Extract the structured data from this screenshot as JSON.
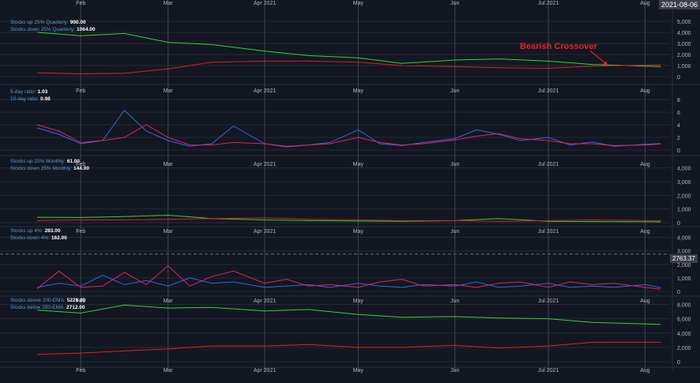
{
  "header": {
    "date_badge": "2021-08-06"
  },
  "price_badge": "2763.37",
  "annotation": {
    "text": "Bearish Crossover",
    "color": "#e8202a"
  },
  "x_axis": {
    "ticks": [
      "Feb",
      "Mar",
      "Apr 2021",
      "May",
      "Jun",
      "Jul 2021",
      "Aug"
    ]
  },
  "colors": {
    "green": "#2bd62b",
    "red": "#e51c23",
    "blue": "#2f6bd6",
    "pink": "#e91e63",
    "grid": "#262a33",
    "vline": "#3f434c"
  },
  "panes": [
    {
      "legend": [
        {
          "label": "Stocks up 25% Quarterly:",
          "value": "900.00"
        },
        {
          "label": "Stocks down 25% Quarterly:",
          "value": "1064.00"
        }
      ],
      "y_ticks": [
        "5,000",
        "4,000",
        "3,000",
        "2,000",
        "1,000",
        "0"
      ]
    },
    {
      "legend": [
        {
          "label": "5-day ratio:",
          "value": "1.03"
        },
        {
          "label": "10-day ratio:",
          "value": "0.98"
        }
      ],
      "y_ticks": [
        "8",
        "6",
        "4",
        "2",
        "0"
      ]
    },
    {
      "legend": [
        {
          "label": "Stocks up 25% Monthly:",
          "value": "61.00"
        },
        {
          "label": "Stocks down 25% Monthly:",
          "value": "144.00"
        }
      ],
      "y_ticks": [
        "4,000",
        "3,000",
        "2,000",
        "1,000",
        "0"
      ]
    },
    {
      "legend": [
        {
          "label": "Stocks up 4%:",
          "value": "283.00"
        },
        {
          "label": "Stocks down 4%:",
          "value": "162.00"
        }
      ],
      "y_ticks": [
        "4,000",
        "3,000",
        "2,000",
        "1,000",
        "0"
      ]
    },
    {
      "legend": [
        {
          "label": "Stocks above 200-EMA:",
          "value": "5226.00"
        },
        {
          "label": "Stocks below 200-EMA:",
          "value": "2712.00"
        }
      ],
      "y_ticks": [
        "8,000",
        "6,000",
        "4,000",
        "2,000",
        "0"
      ]
    }
  ],
  "chart_data": [
    {
      "type": "line",
      "x_range": [
        "2021-01-18",
        "2021-08-09"
      ],
      "x": [
        "2021-01-18",
        "2021-02-01",
        "2021-02-15",
        "2021-03-01",
        "2021-03-15",
        "2021-04-01",
        "2021-04-15",
        "2021-05-01",
        "2021-05-15",
        "2021-06-01",
        "2021-06-15",
        "2021-07-01",
        "2021-07-15",
        "2021-08-06"
      ],
      "ylim": [
        0,
        5500
      ],
      "y_ticks": [
        0,
        1000,
        2000,
        3000,
        4000,
        5000
      ],
      "series": [
        {
          "name": "Stocks up 25% Quarterly",
          "color": "#2bd62b",
          "values": [
            4000,
            3700,
            3900,
            3100,
            2900,
            2300,
            1900,
            1700,
            1200,
            1500,
            1600,
            1400,
            1100,
            900
          ]
        },
        {
          "name": "Stocks down 25% Quarterly",
          "color": "#e51c23",
          "values": [
            350,
            250,
            300,
            700,
            1300,
            1400,
            1400,
            1300,
            1000,
            900,
            800,
            750,
            950,
            1064
          ]
        }
      ]
    },
    {
      "type": "line",
      "x_range": [
        "2021-01-18",
        "2021-08-09"
      ],
      "x": [
        "2021-01-18",
        "2021-01-25",
        "2021-02-01",
        "2021-02-08",
        "2021-02-15",
        "2021-02-22",
        "2021-03-01",
        "2021-03-08",
        "2021-03-15",
        "2021-03-22",
        "2021-04-01",
        "2021-04-08",
        "2021-04-15",
        "2021-04-22",
        "2021-05-01",
        "2021-05-08",
        "2021-05-15",
        "2021-05-22",
        "2021-06-01",
        "2021-06-08",
        "2021-06-15",
        "2021-06-22",
        "2021-07-01",
        "2021-07-08",
        "2021-07-15",
        "2021-07-22",
        "2021-08-01",
        "2021-08-06"
      ],
      "ylim": [
        0,
        8.5
      ],
      "y_ticks": [
        0,
        2,
        4,
        6,
        8
      ],
      "series": [
        {
          "name": "5-day ratio",
          "color": "#2f6bd6",
          "values": [
            3.5,
            2.5,
            1.0,
            1.5,
            6.3,
            3.0,
            1.5,
            0.6,
            1.0,
            3.8,
            1.0,
            0.5,
            0.8,
            1.2,
            3.2,
            1.0,
            0.7,
            1.2,
            1.8,
            3.2,
            2.5,
            1.5,
            2.0,
            0.8,
            1.3,
            0.6,
            0.9,
            1.03
          ]
        },
        {
          "name": "10-day ratio",
          "color": "#e91e63",
          "values": [
            4.0,
            3.0,
            1.2,
            1.5,
            2.0,
            4.0,
            2.0,
            0.8,
            0.8,
            1.2,
            1.0,
            0.6,
            0.8,
            1.0,
            2.0,
            1.2,
            0.8,
            1.0,
            1.6,
            2.2,
            2.6,
            1.8,
            1.5,
            1.0,
            1.0,
            0.7,
            0.8,
            0.98
          ]
        }
      ]
    },
    {
      "type": "line",
      "x_range": [
        "2021-01-18",
        "2021-08-09"
      ],
      "x": [
        "2021-01-18",
        "2021-02-01",
        "2021-02-15",
        "2021-03-01",
        "2021-03-15",
        "2021-04-01",
        "2021-04-15",
        "2021-05-01",
        "2021-05-15",
        "2021-06-01",
        "2021-06-15",
        "2021-07-01",
        "2021-07-15",
        "2021-08-06"
      ],
      "ylim": [
        0,
        4500
      ],
      "y_ticks": [
        0,
        1000,
        2000,
        3000,
        4000
      ],
      "series": [
        {
          "name": "Stocks up 25% Monthly",
          "color": "#2bd62b",
          "values": [
            400,
            380,
            450,
            550,
            300,
            200,
            150,
            120,
            100,
            150,
            300,
            100,
            80,
            61
          ]
        },
        {
          "name": "Stocks down 25% Monthly",
          "color": "#e51c23",
          "values": [
            150,
            200,
            200,
            250,
            300,
            350,
            250,
            200,
            150,
            150,
            100,
            150,
            200,
            144
          ]
        }
      ]
    },
    {
      "type": "line",
      "x_range": [
        "2021-01-18",
        "2021-08-09"
      ],
      "x": [
        "2021-01-18",
        "2021-01-25",
        "2021-02-01",
        "2021-02-08",
        "2021-02-15",
        "2021-02-22",
        "2021-03-01",
        "2021-03-08",
        "2021-03-15",
        "2021-03-22",
        "2021-04-01",
        "2021-04-08",
        "2021-04-15",
        "2021-04-22",
        "2021-05-01",
        "2021-05-08",
        "2021-05-15",
        "2021-05-22",
        "2021-06-01",
        "2021-06-08",
        "2021-06-15",
        "2021-06-22",
        "2021-07-01",
        "2021-07-08",
        "2021-07-15",
        "2021-07-22",
        "2021-08-01",
        "2021-08-06"
      ],
      "ylim": [
        0,
        4500
      ],
      "y_ticks": [
        0,
        1000,
        2000,
        3000,
        4000
      ],
      "price_line": 2763.37,
      "series": [
        {
          "name": "Stocks up 4%",
          "color": "#2f6bd6",
          "values": [
            300,
            600,
            400,
            1200,
            500,
            800,
            400,
            1000,
            600,
            700,
            300,
            400,
            500,
            300,
            600,
            400,
            300,
            500,
            400,
            700,
            300,
            400,
            600,
            300,
            400,
            300,
            500,
            283
          ]
        },
        {
          "name": "Stocks down 4%",
          "color": "#e91e63",
          "values": [
            200,
            1500,
            300,
            400,
            1400,
            500,
            1900,
            400,
            1100,
            1500,
            600,
            900,
            400,
            500,
            300,
            700,
            900,
            400,
            500,
            300,
            600,
            700,
            300,
            700,
            500,
            600,
            300,
            162
          ]
        }
      ]
    },
    {
      "type": "line",
      "x_range": [
        "2021-01-18",
        "2021-08-09"
      ],
      "x": [
        "2021-01-18",
        "2021-02-01",
        "2021-02-15",
        "2021-03-01",
        "2021-03-15",
        "2021-04-01",
        "2021-04-15",
        "2021-05-01",
        "2021-05-15",
        "2021-06-01",
        "2021-06-15",
        "2021-07-01",
        "2021-07-15",
        "2021-08-06"
      ],
      "ylim": [
        0,
        8500
      ],
      "y_ticks": [
        0,
        2000,
        4000,
        6000,
        8000
      ],
      "series": [
        {
          "name": "Stocks above 200-EMA",
          "color": "#2bd62b",
          "values": [
            7200,
            6800,
            7900,
            7500,
            7600,
            7100,
            7300,
            6600,
            6200,
            6300,
            6100,
            6000,
            5500,
            5226
          ]
        },
        {
          "name": "Stocks below 200-EMA",
          "color": "#e51c23",
          "values": [
            1000,
            1200,
            1500,
            1800,
            2200,
            2200,
            2400,
            2000,
            2000,
            2300,
            1900,
            2200,
            2700,
            2712
          ]
        }
      ]
    }
  ]
}
